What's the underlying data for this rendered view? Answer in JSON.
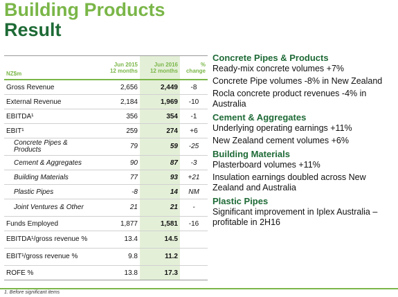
{
  "header": {
    "title": [
      "Building Products",
      "Result"
    ]
  },
  "table": {
    "unit": "NZ$m",
    "columns": [
      [
        "Jun 2015",
        "12 months"
      ],
      [
        "Jun 2016",
        "12 months"
      ],
      [
        "%",
        "change"
      ]
    ],
    "rows": [
      {
        "label": "Gross Revenue",
        "v2015": "2,656",
        "v2016": "2,449",
        "change": "-8"
      },
      {
        "label": "External Revenue",
        "v2015": "2,184",
        "v2016": "1,969",
        "change": "-10"
      },
      {
        "label": "EBITDA¹",
        "v2015": "356",
        "v2016": "354",
        "change": "-1"
      },
      {
        "label": "EBIT¹",
        "v2015": "259",
        "v2016": "274",
        "change": "+6"
      },
      {
        "label": "Concrete Pipes & Products",
        "v2015": "79",
        "v2016": "59",
        "change": "-25",
        "sub": true
      },
      {
        "label": "Cement & Aggregates",
        "v2015": "90",
        "v2016": "87",
        "change": "-3",
        "sub": true
      },
      {
        "label": "Building Materials",
        "v2015": "77",
        "v2016": "93",
        "change": "+21",
        "sub": true
      },
      {
        "label": "Plastic Pipes",
        "v2015": "-8",
        "v2016": "14",
        "change": "NM",
        "sub": true
      },
      {
        "label": "Joint Ventures & Other",
        "v2015": "21",
        "v2016": "21",
        "change": "-",
        "sub": true
      },
      {
        "label": "Funds Employed",
        "v2015": "1,877",
        "v2016": "1,581",
        "change": "-16"
      },
      {
        "label": "EBITDA¹/gross revenue %",
        "v2015": "13.4",
        "v2016": "14.5",
        "change": null
      },
      {
        "label": "EBIT¹/gross revenue %",
        "v2015": "9.8",
        "v2016": "11.2",
        "change": null
      },
      {
        "label": "ROFE %",
        "v2015": "13.8",
        "v2016": "17.3",
        "change": null
      }
    ]
  },
  "sections": [
    {
      "heading": "Concrete Pipes & Products",
      "items": [
        "Ready-mix concrete volumes +7%",
        "Concrete Pipe volumes -8% in New Zealand",
        "Rocla concrete product revenues -4% in Australia"
      ]
    },
    {
      "heading": "Cement & Aggregates",
      "items": [
        "Underlying operating earnings +11%",
        "New Zealand cement volumes +6%"
      ]
    },
    {
      "heading": "Building Materials",
      "items": [
        "Plasterboard volumes +11%",
        "Insulation earnings doubled across New Zealand and Australia"
      ]
    },
    {
      "heading": "Plastic Pipes",
      "items": [
        "Significant improvement in Iplex Australia – profitable in 2H16"
      ]
    }
  ],
  "footnote": "1.   Before significant items"
}
